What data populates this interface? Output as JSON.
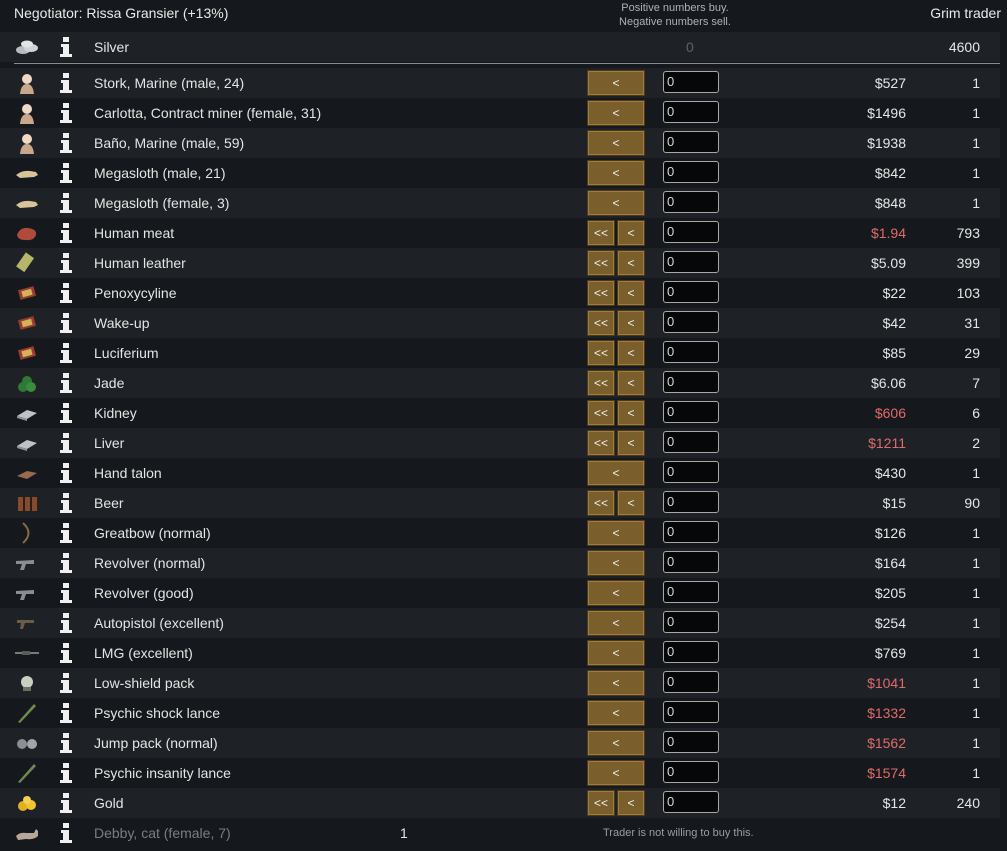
{
  "header": {
    "negotiator": "Negotiator: Rissa Gransier (+13%)",
    "hint_line1": "Positive numbers buy.",
    "hint_line2": "Negative numbers sell.",
    "trader": "Grim trader"
  },
  "silver": {
    "name": "Silver",
    "colony_qty": "0",
    "trader_count": "4600",
    "icon": "silver-icon"
  },
  "colors": {
    "button": "#7a5e2c",
    "price_warning": "#e06a6a",
    "background": "#15191d"
  },
  "items": [
    {
      "name": "Stork, Marine (male, 24)",
      "icon": "colonist-portrait-icon",
      "buttons": "single",
      "qty": "0",
      "price": "$527",
      "price_red": false,
      "count": "1"
    },
    {
      "name": "Carlotta, Contract miner (female, 31)",
      "icon": "colonist-portrait-icon",
      "buttons": "single",
      "qty": "0",
      "price": "$1496",
      "price_red": false,
      "count": "1"
    },
    {
      "name": "Baño, Marine (male, 59)",
      "icon": "colonist-portrait-icon",
      "buttons": "single",
      "qty": "0",
      "price": "$1938",
      "price_red": false,
      "count": "1"
    },
    {
      "name": "Megasloth (male, 21)",
      "icon": "megasloth-icon",
      "buttons": "single",
      "qty": "0",
      "price": "$842",
      "price_red": false,
      "count": "1"
    },
    {
      "name": "Megasloth (female, 3)",
      "icon": "megasloth-icon",
      "buttons": "single",
      "qty": "0",
      "price": "$848",
      "price_red": false,
      "count": "1"
    },
    {
      "name": "Human meat",
      "icon": "meat-icon",
      "buttons": "double",
      "qty": "0",
      "price": "$1.94",
      "price_red": true,
      "count": "793"
    },
    {
      "name": "Human leather",
      "icon": "leather-icon",
      "buttons": "double",
      "qty": "0",
      "price": "$5.09",
      "price_red": false,
      "count": "399"
    },
    {
      "name": "Penoxycyline",
      "icon": "pill-pack-icon",
      "buttons": "double",
      "qty": "0",
      "price": "$22",
      "price_red": false,
      "count": "103"
    },
    {
      "name": "Wake-up",
      "icon": "pill-pack-icon",
      "buttons": "double",
      "qty": "0",
      "price": "$42",
      "price_red": false,
      "count": "31"
    },
    {
      "name": "Luciferium",
      "icon": "pill-pack-icon",
      "buttons": "double",
      "qty": "0",
      "price": "$85",
      "price_red": false,
      "count": "29"
    },
    {
      "name": "Jade",
      "icon": "jade-icon",
      "buttons": "double",
      "qty": "0",
      "price": "$6.06",
      "price_red": false,
      "count": "7"
    },
    {
      "name": "Kidney",
      "icon": "organ-box-icon",
      "buttons": "double",
      "qty": "0",
      "price": "$606",
      "price_red": true,
      "count": "6"
    },
    {
      "name": "Liver",
      "icon": "organ-box-icon",
      "buttons": "double",
      "qty": "0",
      "price": "$1211",
      "price_red": true,
      "count": "2"
    },
    {
      "name": "Hand talon",
      "icon": "hand-talon-icon",
      "buttons": "single",
      "qty": "0",
      "price": "$430",
      "price_red": false,
      "count": "1"
    },
    {
      "name": "Beer",
      "icon": "beer-icon",
      "buttons": "double",
      "qty": "0",
      "price": "$15",
      "price_red": false,
      "count": "90"
    },
    {
      "name": "Greatbow (normal)",
      "icon": "bow-icon",
      "buttons": "single",
      "qty": "0",
      "price": "$126",
      "price_red": false,
      "count": "1"
    },
    {
      "name": "Revolver (normal)",
      "icon": "revolver-icon",
      "buttons": "single",
      "qty": "0",
      "price": "$164",
      "price_red": false,
      "count": "1"
    },
    {
      "name": "Revolver (good)",
      "icon": "revolver-icon",
      "buttons": "single",
      "qty": "0",
      "price": "$205",
      "price_red": false,
      "count": "1"
    },
    {
      "name": "Autopistol (excellent)",
      "icon": "pistol-icon",
      "buttons": "single",
      "qty": "0",
      "price": "$254",
      "price_red": false,
      "count": "1"
    },
    {
      "name": "LMG (excellent)",
      "icon": "lmg-icon",
      "buttons": "single",
      "qty": "0",
      "price": "$769",
      "price_red": false,
      "count": "1"
    },
    {
      "name": "Low-shield pack",
      "icon": "shield-pack-icon",
      "buttons": "single",
      "qty": "0",
      "price": "$1041",
      "price_red": true,
      "count": "1"
    },
    {
      "name": "Psychic shock lance",
      "icon": "lance-icon",
      "buttons": "single",
      "qty": "0",
      "price": "$1332",
      "price_red": true,
      "count": "1"
    },
    {
      "name": "Jump pack (normal)",
      "icon": "jump-pack-icon",
      "buttons": "single",
      "qty": "0",
      "price": "$1562",
      "price_red": true,
      "count": "1"
    },
    {
      "name": "Psychic insanity lance",
      "icon": "lance-icon",
      "buttons": "single",
      "qty": "0",
      "price": "$1574",
      "price_red": true,
      "count": "1"
    },
    {
      "name": "Gold",
      "icon": "gold-icon",
      "buttons": "double",
      "qty": "0",
      "price": "$12",
      "price_red": false,
      "count": "240"
    }
  ],
  "disabled_item": {
    "name": "Debby, cat (female, 7)",
    "icon": "cat-icon",
    "colony_count": "1",
    "note": "Trader is not willing to buy this."
  },
  "labels": {
    "one_left": "<",
    "all_left": "<<"
  }
}
